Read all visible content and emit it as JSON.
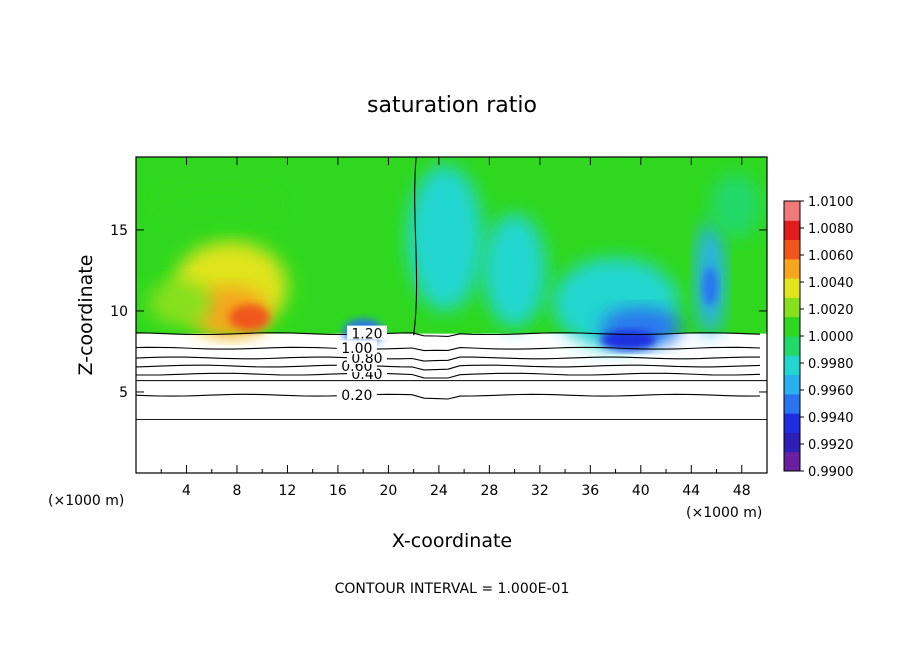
{
  "chart_data": {
    "type": "heatmap",
    "title": "saturation ratio",
    "xlabel": "X-coordinate",
    "ylabel": "Z-coordinate",
    "x_unit_label": "(×1000 m)",
    "xlim": [
      0,
      50
    ],
    "ylim": [
      0,
      19.5
    ],
    "x_ticks": [
      4,
      8,
      12,
      16,
      20,
      24,
      28,
      32,
      36,
      40,
      44,
      48
    ],
    "y_ticks": [
      5,
      10,
      15
    ],
    "colorbar": {
      "min": 0.99,
      "max": 1.01,
      "labels": [
        "1.0100",
        "1.0080",
        "1.0060",
        "1.0040",
        "1.0020",
        "1.0000",
        "0.9980",
        "0.9960",
        "0.9940",
        "0.9920",
        "0.9900"
      ],
      "colors": [
        "#6a1fa0",
        "#2e1fb8",
        "#1e2ee0",
        "#2a74f0",
        "#29b0ee",
        "#22d6d0",
        "#22d86a",
        "#2fd81e",
        "#86e01c",
        "#e0e41c",
        "#f5a51e",
        "#f0561c",
        "#e01c1c",
        "#f07a7a"
      ]
    },
    "contours": [
      {
        "level": 0.2,
        "z": 4.8,
        "label": "0.20"
      },
      {
        "level": 0.4,
        "z": 6.1,
        "label": "0.40"
      },
      {
        "level": 0.6,
        "z": 6.6,
        "label": "0.60"
      },
      {
        "level": 0.8,
        "z": 7.1,
        "label": "0.80"
      },
      {
        "level": 1.0,
        "z": 7.7,
        "label": "1.00"
      },
      {
        "level": 1.2,
        "z": 8.6,
        "label": "1.20"
      }
    ],
    "contour_interval_text": "CONTOUR INTERVAL = 1.000E-01"
  }
}
